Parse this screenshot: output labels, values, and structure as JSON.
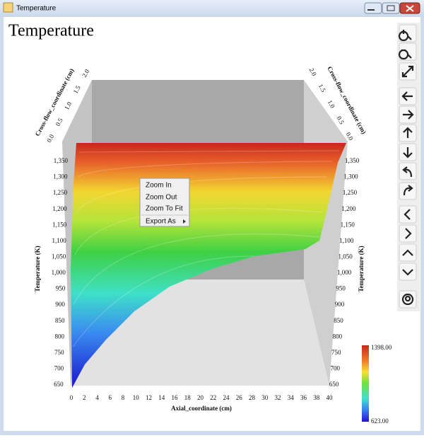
{
  "window": {
    "title": "Temperature"
  },
  "chart": {
    "title": "Temperature",
    "x_axis_label": "Axial_coordinate (cm)",
    "x_ticks": [
      "0",
      "2",
      "4",
      "6",
      "8",
      "10",
      "12",
      "14",
      "16",
      "18",
      "20",
      "22",
      "24",
      "26",
      "28",
      "30",
      "32",
      "34",
      "36",
      "38",
      "40"
    ],
    "y_axis_label": "Temperature (K)",
    "y_ticks": [
      "650",
      "700",
      "750",
      "800",
      "850",
      "900",
      "950",
      "1,000",
      "1,050",
      "1,100",
      "1,150",
      "1,200",
      "1,250",
      "1,300",
      "1,350"
    ],
    "z_axis_label": "Cross-flow_coordinate (cm)",
    "z_ticks": [
      "0.0",
      "0.5",
      "1.0",
      "1.5",
      "2.0"
    ],
    "colorbar": {
      "max_label": "1398.00",
      "min_label": "623.00"
    }
  },
  "context_menu": {
    "items": [
      "Zoom In",
      "Zoom Out",
      "Zoom To Fit",
      "Export As"
    ]
  }
}
